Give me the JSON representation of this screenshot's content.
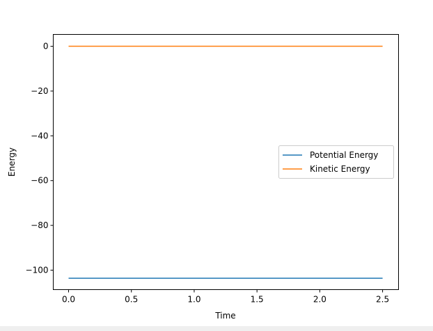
{
  "chart_data": {
    "type": "line",
    "title": "",
    "xlabel": "Time",
    "ylabel": "Energy",
    "xlim": [
      -0.122,
      2.627
    ],
    "ylim": [
      -108.7,
      5.3
    ],
    "xticks": [
      0.0,
      0.5,
      1.0,
      1.5,
      2.0,
      2.5
    ],
    "xtick_labels": [
      "0.0",
      "0.5",
      "1.0",
      "1.5",
      "2.0",
      "2.5"
    ],
    "yticks": [
      0,
      -20,
      -40,
      -60,
      -80,
      -100
    ],
    "ytick_labels": [
      "0",
      "−20",
      "−40",
      "−60",
      "−80",
      "−100"
    ],
    "grid": false,
    "legend_position": "center-right",
    "series": [
      {
        "name": "Potential Energy",
        "color": "#1f77b4",
        "x": [
          0.0,
          2.5
        ],
        "y": [
          -103.6,
          -103.6
        ]
      },
      {
        "name": "Kinetic Energy",
        "color": "#ff7f0e",
        "x": [
          0.0,
          2.5
        ],
        "y": [
          0.0,
          0.0
        ]
      }
    ]
  }
}
